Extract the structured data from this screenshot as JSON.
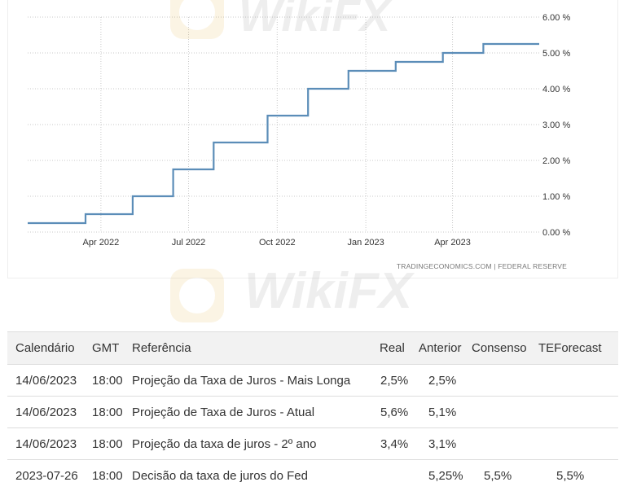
{
  "chart_data": {
    "type": "line",
    "step": true,
    "x": [
      "2022-01-15",
      "2022-03-16",
      "2022-05-04",
      "2022-06-15",
      "2022-07-27",
      "2022-09-21",
      "2022-11-02",
      "2022-12-14",
      "2023-02-01",
      "2023-03-22",
      "2023-05-03",
      "2023-06-30"
    ],
    "series": [
      {
        "values": [
          0.25,
          0.5,
          1.0,
          1.75,
          2.5,
          3.25,
          4.0,
          4.5,
          4.75,
          5.0,
          5.25,
          5.25
        ]
      }
    ],
    "x_ticks": [
      "Apr 2022",
      "Jul 2022",
      "Oct 2022",
      "Jan 2023",
      "Apr 2023"
    ],
    "y_ticks": [
      "6.00 %",
      "5.00 %",
      "4.00 %",
      "3.00 %",
      "2.00 %",
      "1.00 %",
      "0.00 %"
    ],
    "ylim": [
      0,
      6
    ],
    "grid": true,
    "line_color": "#5b8db8",
    "source": "TRADINGECONOMICS.COM  |  FEDERAL RESERVE"
  },
  "watermark": {
    "text": "WikiFX"
  },
  "table": {
    "headers": [
      "Calendário",
      "GMT",
      "Referência",
      "Real",
      "Anterior",
      "Consenso",
      "TEForecast"
    ],
    "rows": [
      [
        "14/06/2023",
        "18:00",
        "Projeção da Taxa de Juros - Mais Longa",
        "2,5%",
        "2,5%",
        "",
        ""
      ],
      [
        "14/06/2023",
        "18:00",
        "Projeção de Taxa de Juros - Atual",
        "5,6%",
        "5,1%",
        "",
        ""
      ],
      [
        "14/06/2023",
        "18:00",
        "Projeção da taxa de juros - 2º ano",
        "3,4%",
        "3,1%",
        "",
        ""
      ],
      [
        "2023-07-26",
        "18:00",
        "Decisão da taxa de juros do Fed",
        "",
        "5,25%",
        "5,5%",
        "5,5%"
      ]
    ]
  }
}
